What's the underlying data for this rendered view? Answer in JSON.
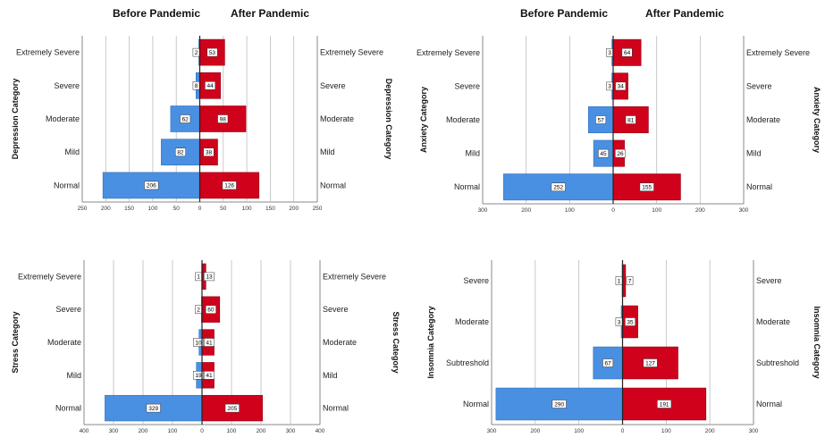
{
  "headers": {
    "before": "Before Pandemic",
    "after": "After Pandemic"
  },
  "colors": {
    "before": "#4a90e2",
    "after": "#d0021b",
    "grid": "#bdbdbd",
    "axis": "#444444"
  },
  "chart_data": [
    {
      "type": "bar",
      "orientation": "horizontal-pyramid",
      "ylabel": "Depression Category",
      "categories": [
        "Extremely Severe",
        "Severe",
        "Moderate",
        "Mild",
        "Normal"
      ],
      "series": [
        {
          "name": "Before Pandemic",
          "values": [
            2,
            8,
            62,
            82,
            206
          ]
        },
        {
          "name": "After Pandemic",
          "values": [
            53,
            44,
            98,
            38,
            126
          ]
        }
      ],
      "xlim": [
        -250,
        250
      ],
      "xticks": [
        -250,
        -200,
        -150,
        -100,
        -50,
        0,
        50,
        100,
        150,
        200,
        250
      ],
      "xtick_labels": [
        "250",
        "200",
        "150",
        "100",
        "50",
        "0",
        "50",
        "100",
        "150",
        "200",
        "250"
      ]
    },
    {
      "type": "bar",
      "orientation": "horizontal-pyramid",
      "ylabel": "Anxiety Category",
      "categories": [
        "Extremely Severe",
        "Severe",
        "Moderate",
        "Mild",
        "Normal"
      ],
      "series": [
        {
          "name": "Before Pandemic",
          "values": [
            3,
            3,
            57,
            45,
            252
          ]
        },
        {
          "name": "After Pandemic",
          "values": [
            64,
            34,
            81,
            26,
            155
          ]
        }
      ],
      "xlim": [
        -300,
        300
      ],
      "xticks": [
        -300,
        -200,
        -100,
        0,
        100,
        200,
        300
      ],
      "xtick_labels": [
        "300",
        "200",
        "100",
        "0",
        "100",
        "200",
        "300"
      ]
    },
    {
      "type": "bar",
      "orientation": "horizontal-pyramid",
      "ylabel": "Stress Category",
      "categories": [
        "Extremely Severe",
        "Severe",
        "Moderate",
        "Mild",
        "Normal"
      ],
      "series": [
        {
          "name": "Before Pandemic",
          "values": [
            1,
            2,
            10,
            19,
            329
          ]
        },
        {
          "name": "After Pandemic",
          "values": [
            13,
            60,
            41,
            41,
            205
          ]
        }
      ],
      "xlim": [
        -400,
        400
      ],
      "xticks": [
        -400,
        -300,
        -200,
        -100,
        0,
        100,
        200,
        300,
        400
      ],
      "xtick_labels": [
        "400",
        "300",
        "200",
        "100",
        "0",
        "100",
        "200",
        "300",
        "400"
      ]
    },
    {
      "type": "bar",
      "orientation": "horizontal-pyramid",
      "ylabel": "Insomnia Category",
      "categories": [
        "Severe",
        "Moderate",
        "Subtreshold",
        "Normal"
      ],
      "series": [
        {
          "name": "Before Pandemic",
          "values": [
            1,
            3,
            67,
            290
          ]
        },
        {
          "name": "After Pandemic",
          "values": [
            7,
            35,
            127,
            191
          ]
        }
      ],
      "xlim": [
        -300,
        300
      ],
      "xticks": [
        -300,
        -200,
        -100,
        0,
        100,
        200,
        300
      ],
      "xtick_labels": [
        "300",
        "200",
        "100",
        "0",
        "100",
        "200",
        "300"
      ]
    }
  ]
}
